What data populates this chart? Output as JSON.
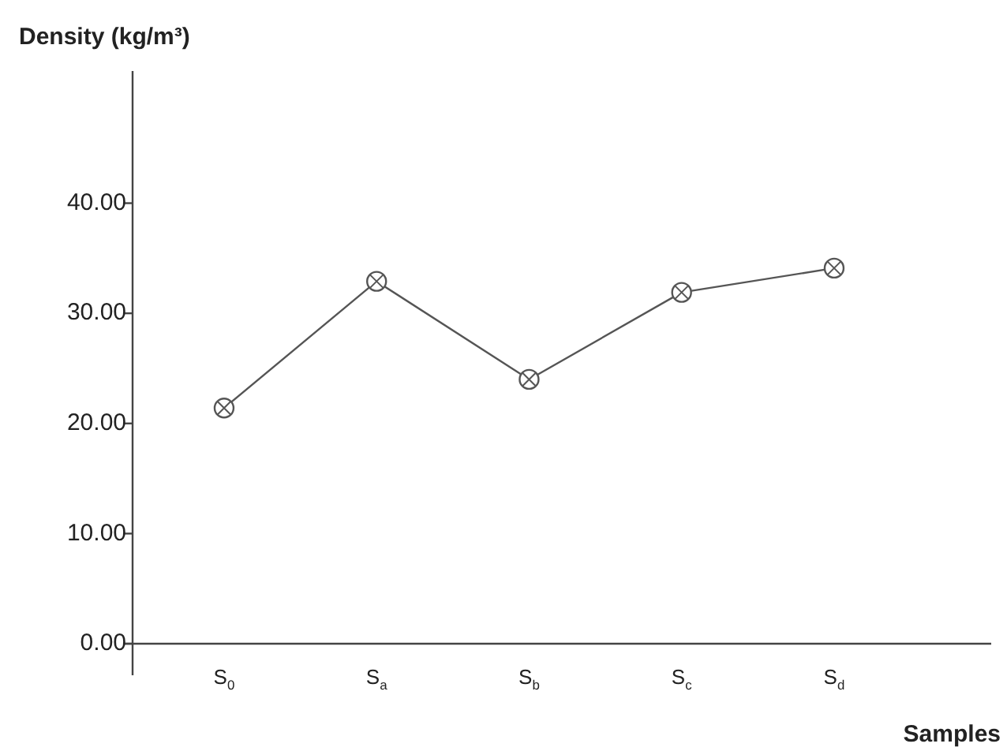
{
  "chart_data": {
    "type": "line",
    "ylabel": "Density (kg/m³)",
    "xlabel": "Samples",
    "categories": [
      "S$_{0}$",
      "S$_{a}$",
      "S$_{b}$",
      "S$_{c}$",
      "S$_{d}$"
    ],
    "series": [
      {
        "color": "#555555",
        "values": [
          21.4,
          32.9,
          24.0,
          31.9,
          34.1
        ]
      }
    ],
    "ylim": [
      0,
      52
    ],
    "yticks": [
      {
        "value": 0,
        "label": "0.00"
      },
      {
        "value": 10,
        "label": "10.00"
      },
      {
        "value": 20,
        "label": "20.00"
      },
      {
        "value": 30,
        "label": "30.00"
      },
      {
        "value": 40,
        "label": "40.00"
      }
    ],
    "grid": false,
    "legend": false,
    "marker": "circle",
    "line_style": "solid"
  }
}
